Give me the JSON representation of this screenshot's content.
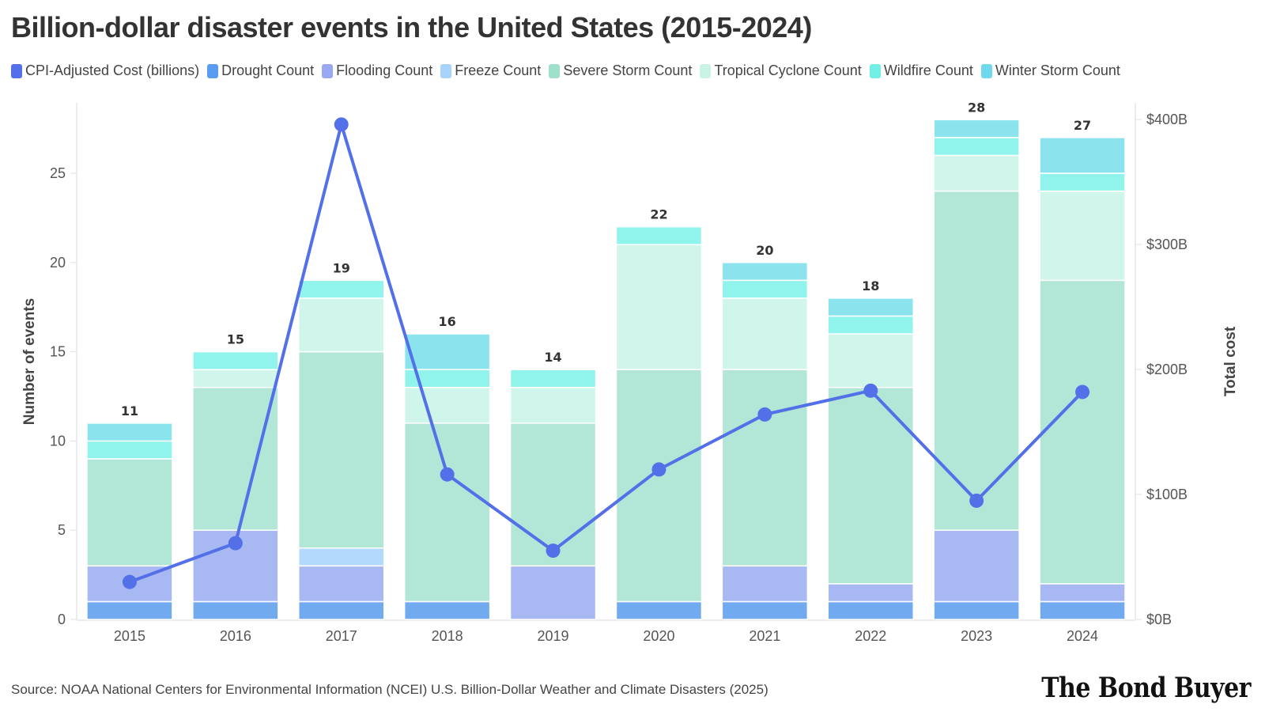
{
  "chart_data": {
    "type": "bar",
    "stacked": true,
    "title": "Billion-dollar disaster events in the United States (2015-2024)",
    "xlabel": "",
    "ylabel": "Number of events",
    "y2label": "Total cost",
    "ylim": [
      0,
      29
    ],
    "y2lim": [
      0,
      400
    ],
    "yticks": [
      "0",
      "5",
      "10",
      "15",
      "20",
      "25"
    ],
    "yticks_values": [
      0,
      5,
      10,
      15,
      20,
      25
    ],
    "y2ticks": [
      "$0B",
      "$100B",
      "$200B",
      "$300B",
      "$400B"
    ],
    "y2ticks_values": [
      0,
      100,
      200,
      300,
      400
    ],
    "grid": true,
    "legend_position": "top-left",
    "categories": [
      "2015",
      "2016",
      "2017",
      "2018",
      "2019",
      "2020",
      "2021",
      "2022",
      "2023",
      "2024"
    ],
    "totals": [
      11,
      15,
      19,
      16,
      14,
      22,
      20,
      18,
      28,
      27
    ],
    "series": [
      {
        "name": "Drought Count",
        "color": "#72aaf0",
        "values": [
          1,
          1,
          1,
          1,
          0,
          1,
          1,
          1,
          1,
          1
        ]
      },
      {
        "name": "Flooding Count",
        "color": "#a8b8f3",
        "values": [
          2,
          4,
          2,
          0,
          3,
          0,
          2,
          1,
          4,
          1
        ]
      },
      {
        "name": "Freeze Count",
        "color": "#b3dafd",
        "values": [
          0,
          0,
          1,
          0,
          0,
          0,
          0,
          0,
          0,
          0
        ]
      },
      {
        "name": "Severe Storm Count",
        "color": "#b2e6d7",
        "values": [
          6,
          8,
          11,
          10,
          8,
          13,
          11,
          11,
          19,
          17
        ]
      },
      {
        "name": "Tropical Cyclone Count",
        "color": "#d0f5ea",
        "values": [
          0,
          1,
          3,
          2,
          2,
          7,
          4,
          3,
          2,
          5
        ]
      },
      {
        "name": "Wildfire Count",
        "color": "#90f3ec",
        "values": [
          1,
          1,
          1,
          1,
          1,
          1,
          1,
          1,
          1,
          1
        ]
      },
      {
        "name": "Winter Storm Count",
        "color": "#8be3ee",
        "values": [
          1,
          0,
          0,
          2,
          0,
          0,
          1,
          1,
          1,
          2
        ]
      }
    ],
    "line_series": {
      "name": "CPI-Adjusted Cost (billions)",
      "color": "#5470e8",
      "axis": "right",
      "values": [
        30,
        61,
        396,
        116,
        55,
        120,
        164,
        183,
        95,
        182
      ]
    }
  },
  "legend": [
    {
      "label": "CPI-Adjusted Cost (billions)",
      "color": "#5470e8"
    },
    {
      "label": "Drought Count",
      "color": "#5a9cf2"
    },
    {
      "label": "Flooding Count",
      "color": "#98a8f2"
    },
    {
      "label": "Freeze Count",
      "color": "#a8d4fc"
    },
    {
      "label": "Severe Storm Count",
      "color": "#9fe0cb"
    },
    {
      "label": "Tropical Cyclone Count",
      "color": "#c8f3e5"
    },
    {
      "label": "Wildfire Count",
      "color": "#72f0e6"
    },
    {
      "label": "Winter Storm Count",
      "color": "#6ed9ec"
    }
  ],
  "source": "Source: NOAA National Centers for Environmental Information (NCEI) U.S. Billion-Dollar Weather and Climate Disasters (2025)",
  "brand": "The Bond Buyer"
}
